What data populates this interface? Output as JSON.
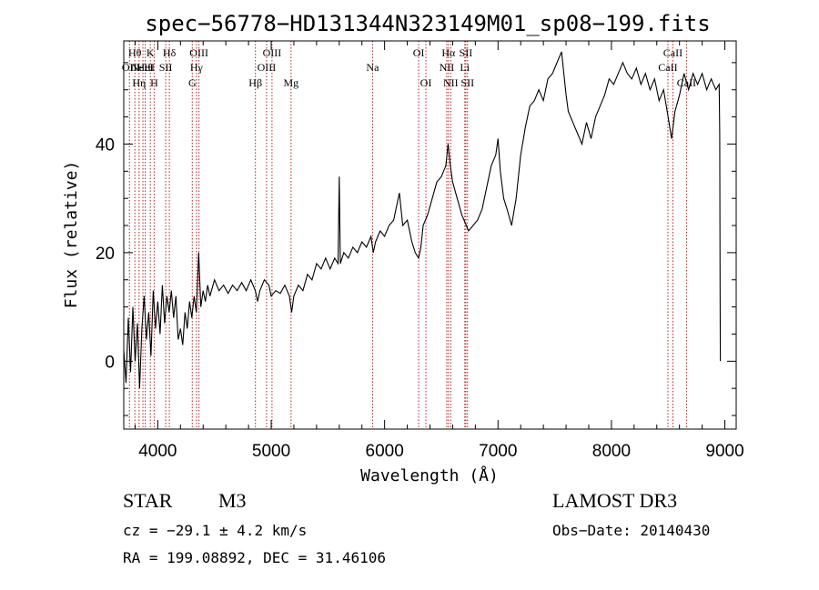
{
  "chart_data": {
    "type": "line",
    "title": "spec−56778−HD131344N323149M01_sp08−199.fits",
    "xlabel": "Wavelength (Å)",
    "ylabel": "Flux (relative)",
    "xlim": [
      3700,
      9100
    ],
    "ylim": [
      -12.5,
      59
    ],
    "x_ticks": [
      4000,
      5000,
      6000,
      7000,
      8000,
      9000
    ],
    "x_tick_labels": [
      "4000",
      "5000",
      "6000",
      "7000",
      "8000",
      "9000"
    ],
    "y_ticks": [
      0,
      20,
      40
    ],
    "y_tick_labels": [
      "0",
      "20",
      "40"
    ],
    "series": [
      {
        "name": "flux",
        "color": "#000000",
        "points": [
          [
            3700,
            2
          ],
          [
            3720,
            -4
          ],
          [
            3740,
            8
          ],
          [
            3760,
            -2
          ],
          [
            3780,
            10
          ],
          [
            3800,
            0
          ],
          [
            3820,
            7
          ],
          [
            3840,
            -5
          ],
          [
            3860,
            6
          ],
          [
            3880,
            12
          ],
          [
            3900,
            4
          ],
          [
            3920,
            9
          ],
          [
            3940,
            1
          ],
          [
            3960,
            13
          ],
          [
            3980,
            6
          ],
          [
            4000,
            11
          ],
          [
            4020,
            5
          ],
          [
            4040,
            14
          ],
          [
            4060,
            7
          ],
          [
            4080,
            12
          ],
          [
            4100,
            9
          ],
          [
            4120,
            13
          ],
          [
            4140,
            8
          ],
          [
            4160,
            12
          ],
          [
            4180,
            4
          ],
          [
            4200,
            6
          ],
          [
            4220,
            3
          ],
          [
            4240,
            9
          ],
          [
            4260,
            6
          ],
          [
            4280,
            11
          ],
          [
            4300,
            8
          ],
          [
            4320,
            12
          ],
          [
            4340,
            9
          ],
          [
            4360,
            20
          ],
          [
            4380,
            10
          ],
          [
            4400,
            13
          ],
          [
            4420,
            11
          ],
          [
            4440,
            14
          ],
          [
            4460,
            12
          ],
          [
            4500,
            15
          ],
          [
            4540,
            13
          ],
          [
            4580,
            14
          ],
          [
            4620,
            12.5
          ],
          [
            4660,
            14
          ],
          [
            4700,
            13
          ],
          [
            4740,
            14.5
          ],
          [
            4780,
            13
          ],
          [
            4820,
            15
          ],
          [
            4860,
            13
          ],
          [
            4880,
            11
          ],
          [
            4900,
            13
          ],
          [
            4940,
            15
          ],
          [
            4980,
            14
          ],
          [
            5000,
            12
          ],
          [
            5040,
            13
          ],
          [
            5080,
            12.5
          ],
          [
            5120,
            14
          ],
          [
            5160,
            12
          ],
          [
            5180,
            9
          ],
          [
            5200,
            12
          ],
          [
            5240,
            14
          ],
          [
            5280,
            13
          ],
          [
            5320,
            16
          ],
          [
            5360,
            15
          ],
          [
            5400,
            18
          ],
          [
            5440,
            17
          ],
          [
            5480,
            19
          ],
          [
            5520,
            17
          ],
          [
            5560,
            19
          ],
          [
            5590,
            18
          ],
          [
            5600,
            34
          ],
          [
            5610,
            18
          ],
          [
            5640,
            20
          ],
          [
            5680,
            19
          ],
          [
            5720,
            21
          ],
          [
            5760,
            20
          ],
          [
            5800,
            22
          ],
          [
            5840,
            21
          ],
          [
            5880,
            23
          ],
          [
            5900,
            20
          ],
          [
            5920,
            22
          ],
          [
            5960,
            24
          ],
          [
            6000,
            23
          ],
          [
            6040,
            25
          ],
          [
            6080,
            26
          ],
          [
            6100,
            28
          ],
          [
            6130,
            31
          ],
          [
            6160,
            25
          ],
          [
            6200,
            26
          ],
          [
            6240,
            22
          ],
          [
            6270,
            20
          ],
          [
            6300,
            19
          ],
          [
            6320,
            21
          ],
          [
            6340,
            25
          ],
          [
            6380,
            27
          ],
          [
            6420,
            30
          ],
          [
            6460,
            33
          ],
          [
            6500,
            34
          ],
          [
            6540,
            36
          ],
          [
            6560,
            40
          ],
          [
            6580,
            36
          ],
          [
            6600,
            33
          ],
          [
            6640,
            30
          ],
          [
            6680,
            27
          ],
          [
            6720,
            25
          ],
          [
            6740,
            24
          ],
          [
            6780,
            25
          ],
          [
            6820,
            26
          ],
          [
            6860,
            28
          ],
          [
            6900,
            32
          ],
          [
            6940,
            36
          ],
          [
            6980,
            38
          ],
          [
            7000,
            41
          ],
          [
            7020,
            35
          ],
          [
            7050,
            30
          ],
          [
            7080,
            28
          ],
          [
            7120,
            25
          ],
          [
            7160,
            30
          ],
          [
            7200,
            38
          ],
          [
            7240,
            43
          ],
          [
            7280,
            47
          ],
          [
            7320,
            48
          ],
          [
            7360,
            50
          ],
          [
            7400,
            48
          ],
          [
            7440,
            52
          ],
          [
            7480,
            53
          ],
          [
            7520,
            55
          ],
          [
            7560,
            57
          ],
          [
            7580,
            53
          ],
          [
            7600,
            49
          ],
          [
            7620,
            46
          ],
          [
            7660,
            44
          ],
          [
            7700,
            42
          ],
          [
            7740,
            40
          ],
          [
            7780,
            44
          ],
          [
            7820,
            41
          ],
          [
            7860,
            45
          ],
          [
            7900,
            47
          ],
          [
            7940,
            49
          ],
          [
            7980,
            52
          ],
          [
            8020,
            51
          ],
          [
            8060,
            53
          ],
          [
            8100,
            55
          ],
          [
            8140,
            53
          ],
          [
            8180,
            52
          ],
          [
            8220,
            54
          ],
          [
            8260,
            51
          ],
          [
            8300,
            53
          ],
          [
            8340,
            50
          ],
          [
            8380,
            52
          ],
          [
            8420,
            48
          ],
          [
            8460,
            50
          ],
          [
            8500,
            45
          ],
          [
            8530,
            41
          ],
          [
            8560,
            46
          ],
          [
            8600,
            49
          ],
          [
            8640,
            53
          ],
          [
            8680,
            50
          ],
          [
            8720,
            53
          ],
          [
            8760,
            51
          ],
          [
            8800,
            53
          ],
          [
            8840,
            50
          ],
          [
            8880,
            52
          ],
          [
            8920,
            50
          ],
          [
            8950,
            51
          ],
          [
            8955,
            42
          ],
          [
            8958,
            14
          ],
          [
            8960,
            0
          ]
        ]
      }
    ],
    "lines": [
      {
        "wl": 3750,
        "label": "OII",
        "row": 1
      },
      {
        "wl": 3798,
        "label": "Hθ",
        "row": 0
      },
      {
        "wl": 3835,
        "label": "Hη",
        "row": 2
      },
      {
        "wl": 3869,
        "label": "NeIII",
        "row": 1
      },
      {
        "wl": 3889,
        "label": "HeI",
        "row": 1
      },
      {
        "wl": 3934,
        "label": "K",
        "row": 0
      },
      {
        "wl": 3968,
        "label": "H",
        "row": 2
      },
      {
        "wl": 4070,
        "label": "SII",
        "row": 1
      },
      {
        "wl": 4102,
        "label": "Hδ",
        "row": 0
      },
      {
        "wl": 4304,
        "label": "G",
        "row": 2
      },
      {
        "wl": 4341,
        "label": "Hγ",
        "row": 1
      },
      {
        "wl": 4363,
        "label": "OIII",
        "row": 0
      },
      {
        "wl": 4861,
        "label": "Hβ",
        "row": 2
      },
      {
        "wl": 4959,
        "label": "OIII",
        "row": 1
      },
      {
        "wl": 5007,
        "label": "OIII",
        "row": 0
      },
      {
        "wl": 5175,
        "label": "Mg",
        "row": 2
      },
      {
        "wl": 5894,
        "label": "Na",
        "row": 1
      },
      {
        "wl": 6300,
        "label": "OI",
        "row": 0
      },
      {
        "wl": 6364,
        "label": "OI",
        "row": 2
      },
      {
        "wl": 6548,
        "label": "NII",
        "row": 1
      },
      {
        "wl": 6563,
        "label": "Hα",
        "row": 0
      },
      {
        "wl": 6583,
        "label": "NII",
        "row": 2
      },
      {
        "wl": 6707,
        "label": "Li",
        "row": 1
      },
      {
        "wl": 6716,
        "label": "SII",
        "row": 0
      },
      {
        "wl": 6731,
        "label": "SII",
        "row": 2
      },
      {
        "wl": 8498,
        "label": "CaII",
        "row": 1
      },
      {
        "wl": 8542,
        "label": "CaII",
        "row": 0
      },
      {
        "wl": 8662,
        "label": "CaII",
        "row": 2
      }
    ],
    "line_color": "#b22222"
  },
  "info": {
    "class": "STAR",
    "subclass": "M3",
    "survey": "LAMOST DR3",
    "cz": "cz = −29.1 ± 4.2 km/s",
    "obs_date": "Obs−Date: 20140430",
    "radec": "RA = 199.08892, DEC =  31.46106"
  }
}
